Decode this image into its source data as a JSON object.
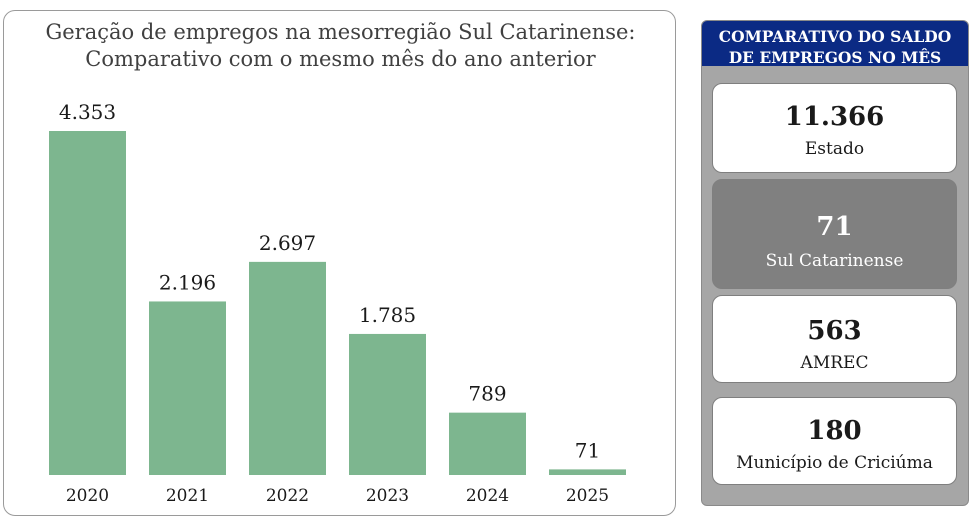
{
  "chart_data": {
    "type": "bar",
    "title": "Geração de empregos na mesorregião Sul Catarinense:",
    "subtitle": "Comparativo com o mesmo mês do ano anterior",
    "categories": [
      "2020",
      "2021",
      "2022",
      "2023",
      "2024",
      "2025"
    ],
    "values": [
      4353,
      2196,
      2697,
      1785,
      789,
      71
    ],
    "value_labels": [
      "4.353",
      "2.196",
      "2.697",
      "1.785",
      "789",
      "71"
    ],
    "xlabel": "",
    "ylabel": "",
    "ylim": [
      0,
      4353
    ],
    "grid": false,
    "bar_color": "#7db68f"
  },
  "side": {
    "header_line1": "COMPARATIVO DO SALDO",
    "header_line2": "DE EMPREGOS NO MÊS",
    "header_color": "#0b2a84",
    "cards": [
      {
        "value": "11.366",
        "label": "Estado"
      },
      {
        "value": "71",
        "label": "Sul Catarinense"
      },
      {
        "value": "563",
        "label": "AMREC"
      },
      {
        "value": "180",
        "label": "Município de Criciúma"
      }
    ]
  }
}
